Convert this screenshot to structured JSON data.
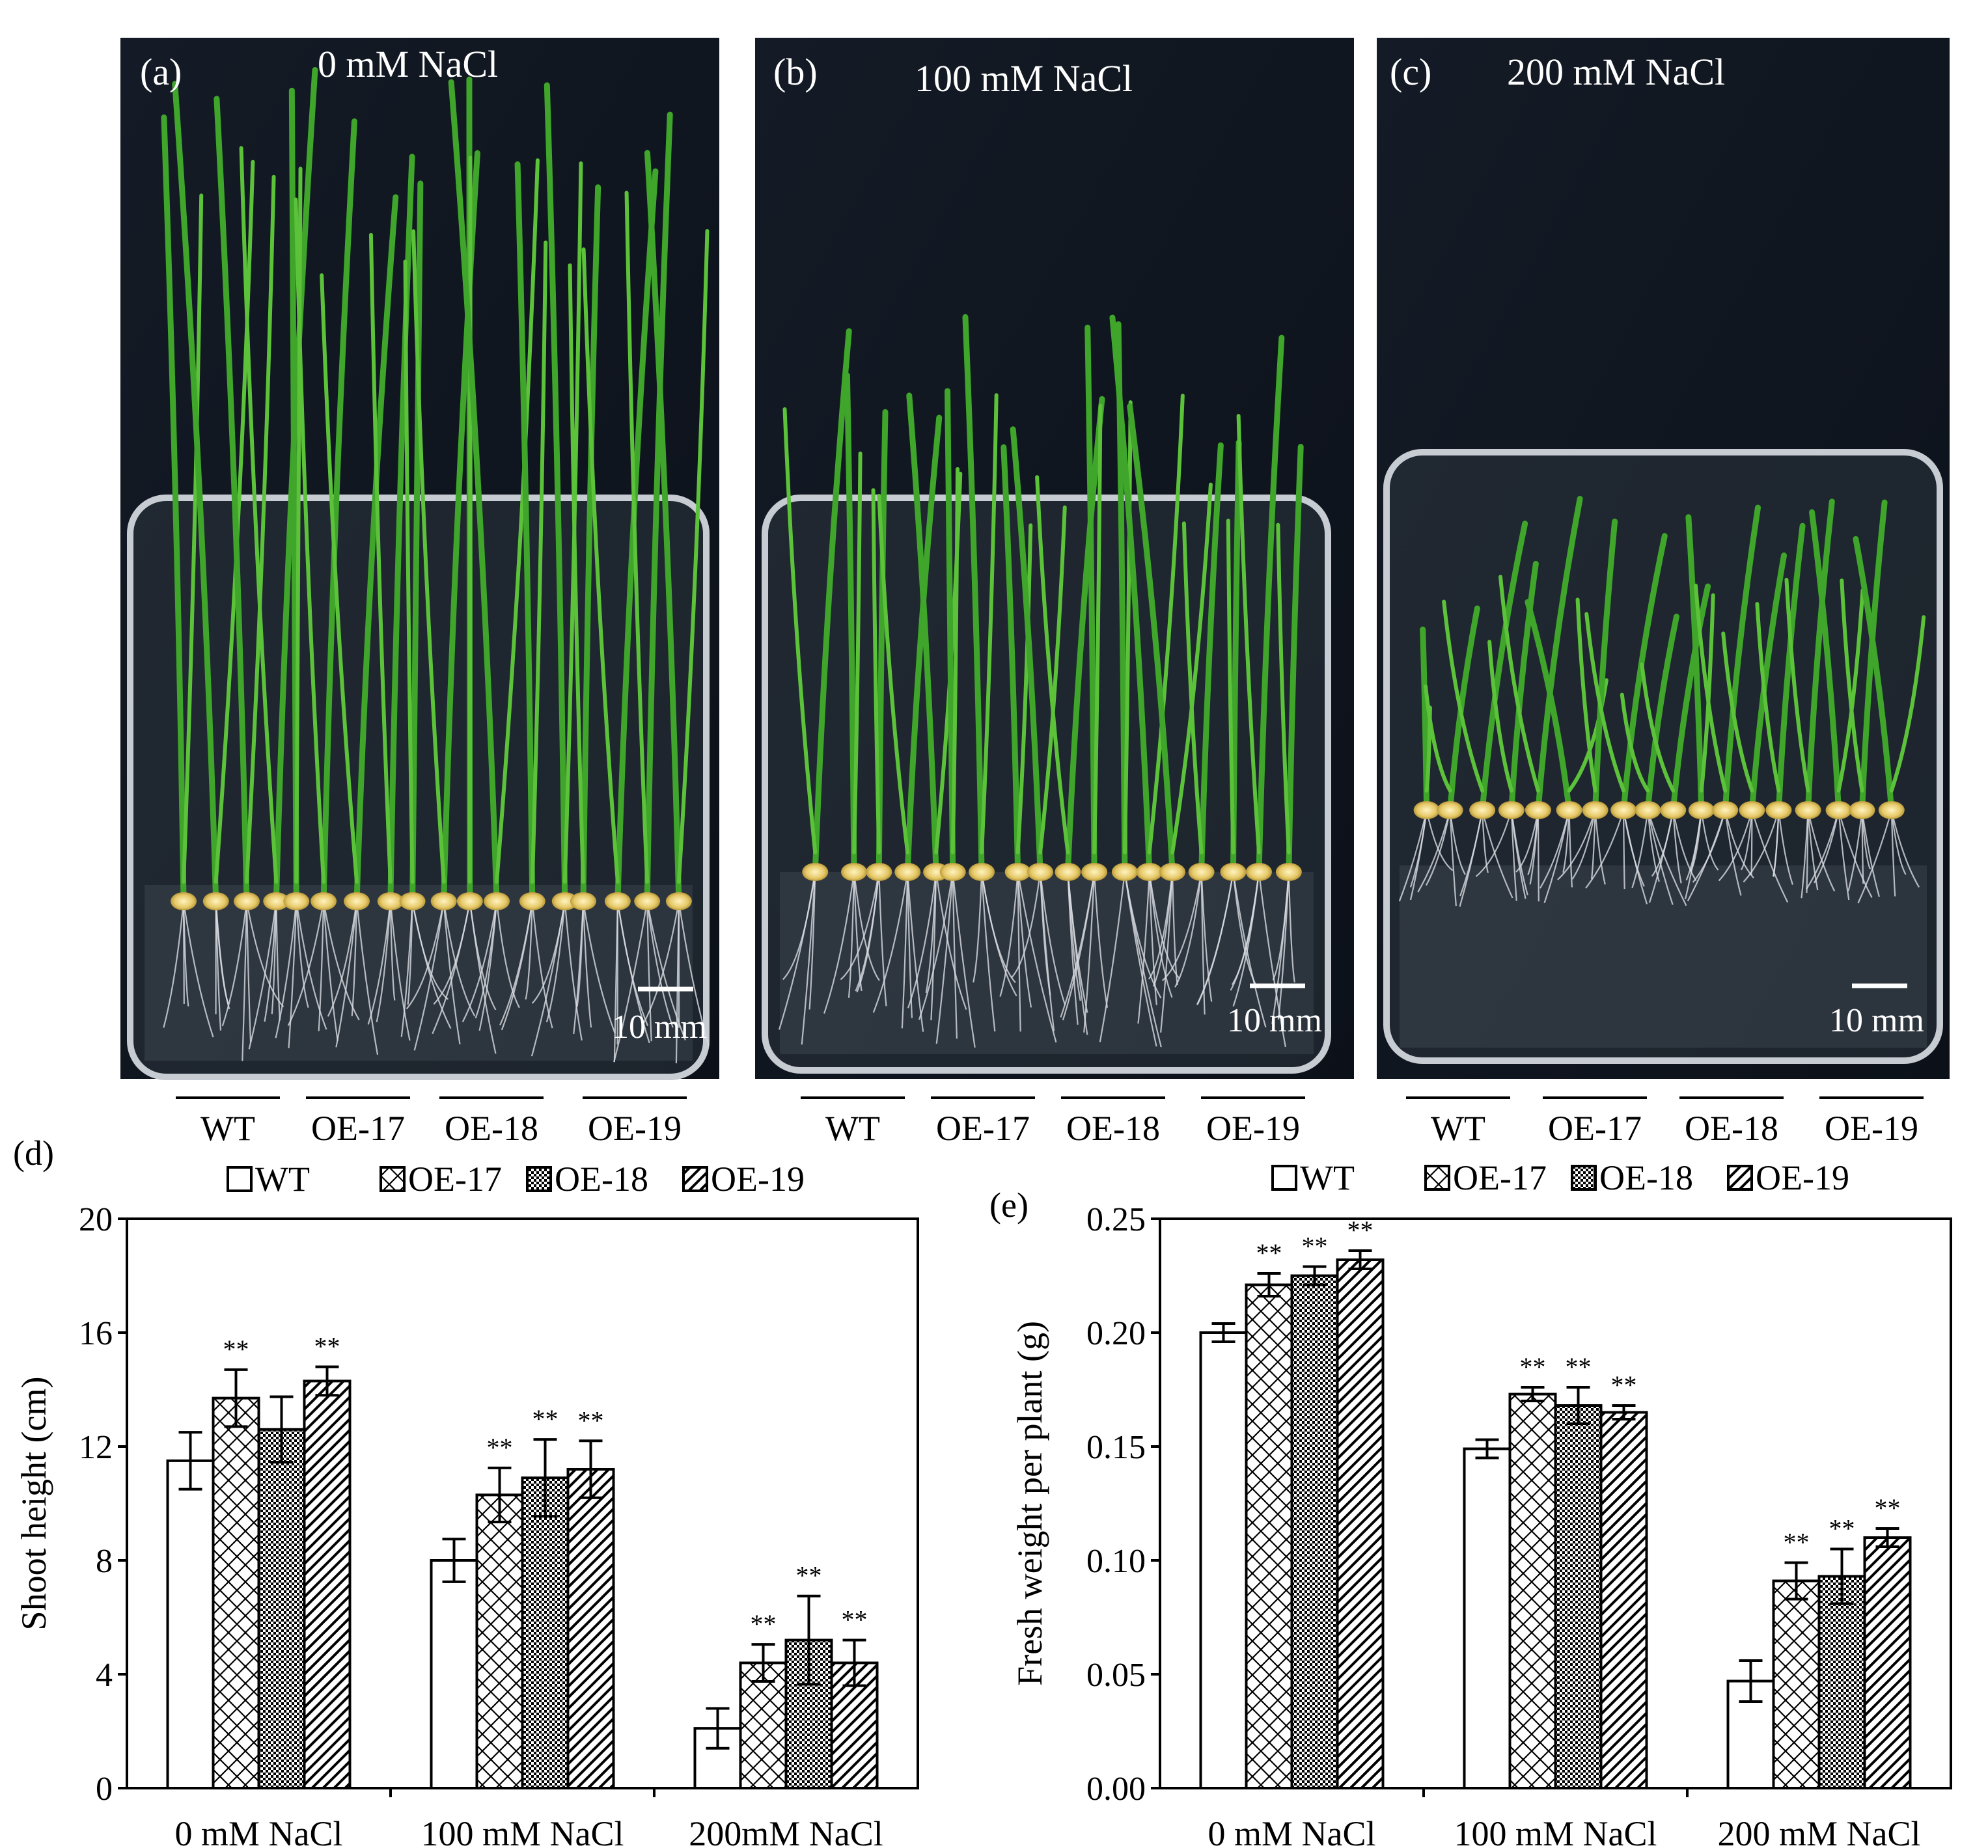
{
  "photos": [
    {
      "label": "(a)",
      "condition": "0 mM NaCl",
      "scale_bar": "10 mm"
    },
    {
      "label": "(b)",
      "condition": "100 mM NaCl",
      "scale_bar": "10 mm"
    },
    {
      "label": "(c)",
      "condition": "200 mM NaCl",
      "scale_bar": "10 mm"
    }
  ],
  "genotypes": [
    "WT",
    "OE-17",
    "OE-18",
    "OE-19"
  ],
  "chart_data": [
    {
      "type": "bar",
      "panel_label": "(d)",
      "ylabel": "Shoot  height (cm)",
      "xlabel": "",
      "categories": [
        "0 mM NaCl",
        "100 mM NaCl",
        "200mM NaCl"
      ],
      "ylim": [
        0,
        20
      ],
      "yticks": [
        "0",
        "4",
        "8",
        "12",
        "16",
        "20"
      ],
      "legend": "top",
      "series": [
        {
          "name": "WT",
          "pattern": "white",
          "values": [
            11.5,
            8.0,
            2.1
          ],
          "errors": [
            1.0,
            0.75,
            0.7
          ],
          "sig": [
            "",
            "",
            ""
          ]
        },
        {
          "name": "OE-17",
          "pattern": "crosshatch",
          "values": [
            13.7,
            10.3,
            4.4
          ],
          "errors": [
            1.0,
            0.95,
            0.65
          ],
          "sig": [
            "**",
            "**",
            "**"
          ]
        },
        {
          "name": "OE-18",
          "pattern": "checker",
          "values": [
            12.6,
            10.9,
            5.2
          ],
          "errors": [
            1.15,
            1.35,
            1.55
          ],
          "sig": [
            "",
            "**",
            "**"
          ]
        },
        {
          "name": "OE-19",
          "pattern": "diagonal",
          "values": [
            14.3,
            11.2,
            4.4
          ],
          "errors": [
            0.5,
            1.0,
            0.8
          ],
          "sig": [
            "**",
            "**",
            "**"
          ]
        }
      ]
    },
    {
      "type": "bar",
      "panel_label": "(e)",
      "ylabel": "Fresh weight per plant (g)",
      "xlabel": "",
      "categories": [
        "0 mM NaCl",
        "100 mM NaCl",
        "200 mM NaCl"
      ],
      "ylim": [
        0,
        0.25
      ],
      "yticks": [
        "0.00",
        "0.05",
        "0.10",
        "0.15",
        "0.20",
        "0.25"
      ],
      "legend": "top",
      "series": [
        {
          "name": "WT",
          "pattern": "white",
          "values": [
            0.2,
            0.149,
            0.047
          ],
          "errors": [
            0.004,
            0.004,
            0.009
          ],
          "sig": [
            "",
            "",
            ""
          ]
        },
        {
          "name": "OE-17",
          "pattern": "crosshatch",
          "values": [
            0.221,
            0.173,
            0.091
          ],
          "errors": [
            0.005,
            0.003,
            0.008
          ],
          "sig": [
            "**",
            "**",
            "**"
          ]
        },
        {
          "name": "OE-18",
          "pattern": "checker",
          "values": [
            0.225,
            0.168,
            0.093
          ],
          "errors": [
            0.004,
            0.008,
            0.012
          ],
          "sig": [
            "**",
            "**",
            "**"
          ]
        },
        {
          "name": "OE-19",
          "pattern": "diagonal",
          "values": [
            0.232,
            0.165,
            0.11
          ],
          "errors": [
            0.004,
            0.003,
            0.004
          ],
          "sig": [
            "**",
            "**",
            "**"
          ]
        }
      ]
    }
  ]
}
